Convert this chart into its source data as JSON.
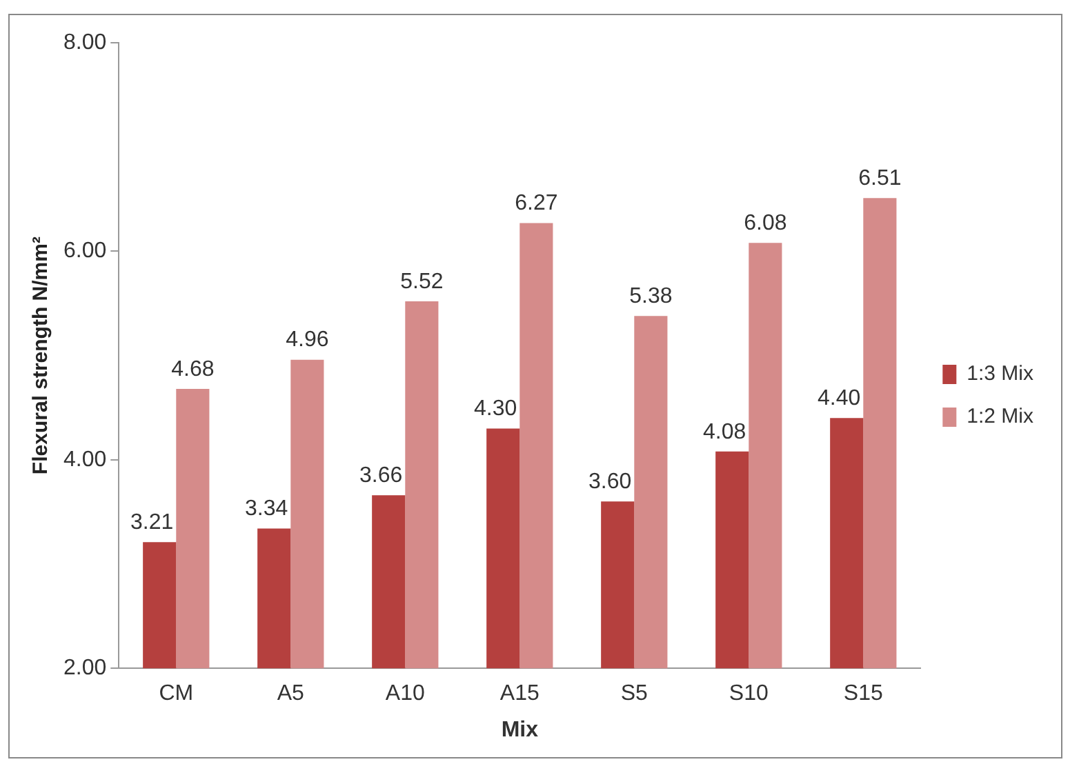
{
  "chart_data": {
    "type": "bar",
    "xlabel": "Mix",
    "ylabel": "Flexural strength N/mm²",
    "categories": [
      "CM",
      "A5",
      "A10",
      "A15",
      "S5",
      "S10",
      "S15"
    ],
    "series": [
      {
        "name": "1:3 Mix",
        "color": "#b5403e",
        "values": [
          3.21,
          3.34,
          3.66,
          4.3,
          3.6,
          4.08,
          4.4
        ],
        "value_labels": [
          "3.21",
          "3.34",
          "3.66",
          "4.30",
          "3.60",
          "4.08",
          "4.40"
        ]
      },
      {
        "name": "1:2 Mix",
        "color": "#d58b8a",
        "values": [
          4.68,
          4.96,
          5.52,
          6.27,
          5.38,
          6.08,
          6.51
        ],
        "value_labels": [
          "4.68",
          "4.96",
          "5.52",
          "6.27",
          "5.38",
          "6.08",
          "6.51"
        ]
      }
    ],
    "ylim": [
      2,
      8
    ],
    "yticks": [
      {
        "value": 2,
        "label": "2.00"
      },
      {
        "value": 4,
        "label": "4.00"
      },
      {
        "value": 6,
        "label": "6.00"
      },
      {
        "value": 8,
        "label": "8.00"
      }
    ],
    "grid": false,
    "legend": "right"
  }
}
